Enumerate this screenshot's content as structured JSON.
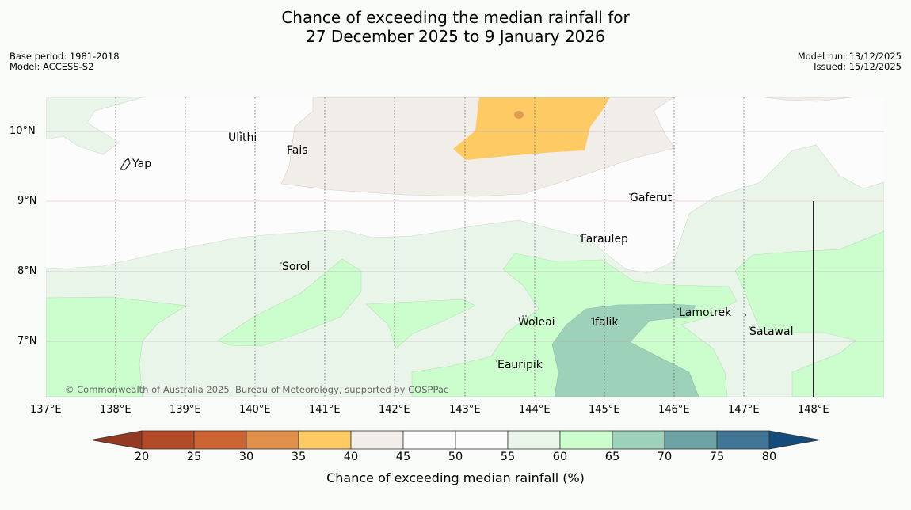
{
  "title_line1": "Chance of exceeding the median rainfall for",
  "title_line2": "27 December 2025 to 9 January 2026",
  "base_period": "Base period: 1981-2018",
  "model": "Model: ACCESS-S2",
  "model_run": "Model run: 13/12/2025",
  "issued": "Issued: 15/12/2025",
  "copyright": "© Commonwealth of Australia 2025, Bureau of Meteorology, supported by COSPPac",
  "lon_ticks": [
    "137°E",
    "138°E",
    "139°E",
    "140°E",
    "141°E",
    "142°E",
    "143°E",
    "144°E",
    "145°E",
    "146°E",
    "147°E",
    "148°E"
  ],
  "lat_ticks": [
    "10°N",
    "9°N",
    "8°N",
    "7°N"
  ],
  "places": {
    "yap": "Yap",
    "ulithi": "Ulithi",
    "fais": "Fais",
    "gaferut": "Gaferut",
    "faraulep": "Faraulep",
    "sorol": "Sorol",
    "woleai": "Woleai",
    "ifalik": "Ifalik",
    "lamotrek": "Lamotrek",
    "satawal": "Satawal",
    "eauripik": "Eauripik"
  },
  "colorbar": {
    "title": "Chance of exceeding median rainfall (%)",
    "labels": [
      "20",
      "25",
      "30",
      "35",
      "40",
      "45",
      "50",
      "55",
      "60",
      "65",
      "70",
      "75",
      "80"
    ],
    "colors": [
      "#b34a28",
      "#cc6433",
      "#e0904a",
      "#fdca64",
      "#f1ede8",
      "#fbfcfb",
      "#fbfcfb",
      "#eaf5ea",
      "#ccfdcc",
      "#9dd1ba",
      "#6da3a4",
      "#417596"
    ],
    "under_color": "#953a22",
    "over_color": "#144b7d"
  }
}
